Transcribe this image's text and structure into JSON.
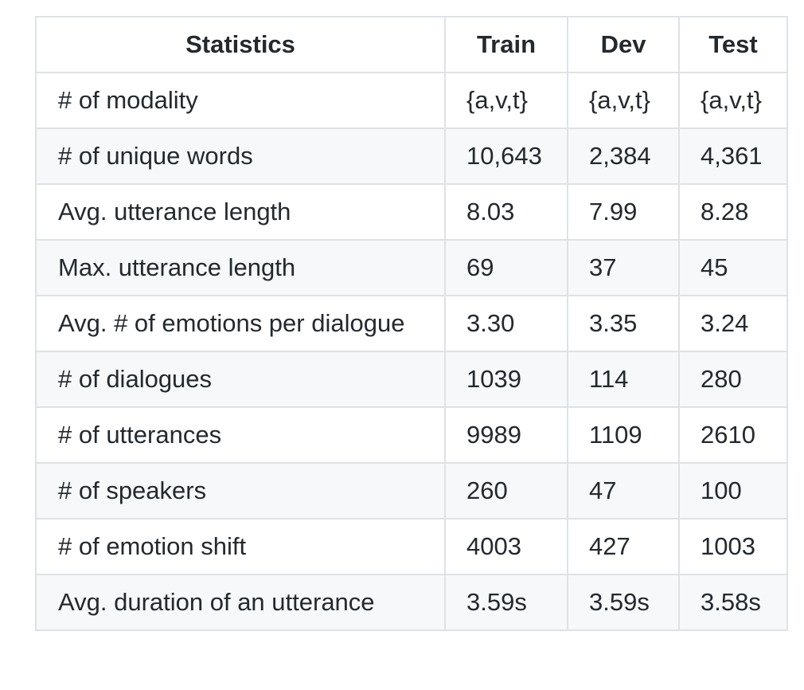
{
  "table": {
    "headers": [
      "Statistics",
      "Train",
      "Dev",
      "Test"
    ],
    "rows": [
      [
        "# of modality",
        "{a,v,t}",
        "{a,v,t}",
        "{a,v,t}"
      ],
      [
        "# of unique words",
        "10,643",
        "2,384",
        "4,361"
      ],
      [
        "Avg. utterance length",
        "8.03",
        "7.99",
        "8.28"
      ],
      [
        "Max. utterance length",
        "69",
        "37",
        "45"
      ],
      [
        "Avg. # of emotions per dialogue",
        "3.30",
        "3.35",
        "3.24"
      ],
      [
        "# of dialogues",
        "1039",
        "114",
        "280"
      ],
      [
        "# of utterances",
        "9989",
        "1109",
        "2610"
      ],
      [
        "# of speakers",
        "260",
        "47",
        "100"
      ],
      [
        "# of emotion shift",
        "4003",
        "427",
        "1003"
      ],
      [
        "Avg. duration of an utterance",
        "3.59s",
        "3.59s",
        "3.58s"
      ]
    ]
  }
}
